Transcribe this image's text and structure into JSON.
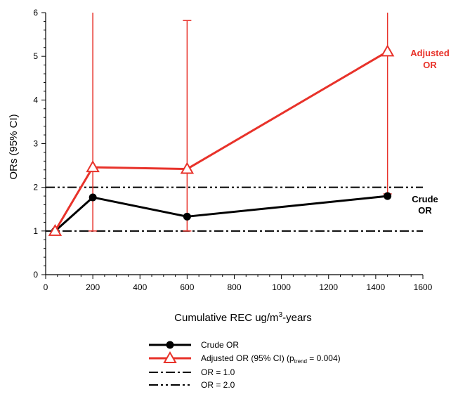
{
  "chart_data": {
    "type": "line",
    "xlabel": {
      "text": "Cumulative REC ug/m",
      "sup": "3",
      "suffix": "-years"
    },
    "ylabel": "ORs (95% CI)",
    "xlim": [
      0,
      1600
    ],
    "ylim": [
      0,
      6
    ],
    "x_ticks": [
      0,
      200,
      400,
      600,
      800,
      1000,
      1200,
      1400,
      1600
    ],
    "y_ticks": [
      0,
      1,
      2,
      3,
      4,
      5,
      6
    ],
    "grid": false,
    "series": [
      {
        "name": "Crude OR",
        "color": "#000000",
        "marker": "circle",
        "x": [
          40,
          200,
          600,
          1450
        ],
        "y": [
          1.0,
          1.77,
          1.33,
          1.8
        ]
      },
      {
        "name": "Adjusted OR (95% CI) (ptrend = 0.004)",
        "color": "#e8322a",
        "marker": "triangle-open",
        "x": [
          40,
          200,
          600,
          1450
        ],
        "y": [
          1.0,
          2.46,
          2.42,
          5.11
        ],
        "ci_lower": [
          null,
          1.0,
          1.0,
          1.85
        ],
        "ci_upper": [
          null,
          6.0,
          5.82,
          6.0
        ]
      }
    ],
    "reference_lines": [
      {
        "name": "OR = 1.0",
        "y": 1.0,
        "style": "dash-dot"
      },
      {
        "name": "OR = 2.0",
        "y": 2.0,
        "style": "dash-dot-dot"
      }
    ],
    "annotations": [
      {
        "line1": "Adjusted",
        "line2": "OR",
        "color": "#e8322a"
      },
      {
        "line1": "Crude",
        "line2": "OR",
        "color": "#000000"
      }
    ],
    "legend": {
      "placement": "bottom",
      "items": [
        {
          "text": "Crude OR"
        },
        {
          "text": "Adjusted OR (95% CI) (p",
          "sub": "trend",
          "after": " = 0.004)"
        },
        {
          "text": "OR = 1.0"
        },
        {
          "text": "OR = 2.0"
        }
      ]
    }
  }
}
